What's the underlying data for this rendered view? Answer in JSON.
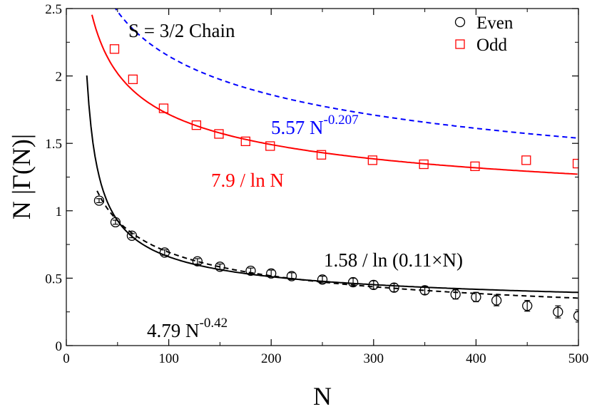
{
  "chart_data": {
    "type": "scatter",
    "title": "S = 3/2 Chain",
    "xlabel": "N",
    "ylabel": "N |Γ(N)|",
    "xlim": [
      0,
      500
    ],
    "ylim": [
      0,
      2.5
    ],
    "x_ticks": [
      0,
      100,
      200,
      300,
      400,
      500
    ],
    "y_ticks": [
      0,
      0.5,
      1,
      1.5,
      2,
      2.5
    ],
    "x_tick_labels": [
      "0",
      "100",
      "200",
      "300",
      "400",
      "500"
    ],
    "y_tick_labels": [
      "0",
      "0.5",
      "1",
      "1.5",
      "2",
      "2.5"
    ],
    "legend_position": "top-right",
    "series": [
      {
        "name": "Even",
        "marker": "circle",
        "color": "#000000",
        "x": [
          32,
          48,
          64,
          96,
          128,
          150,
          180,
          200,
          220,
          250,
          280,
          300,
          320,
          350,
          380,
          400,
          420,
          450,
          480,
          500
        ],
        "y": [
          1.075,
          0.915,
          0.815,
          0.69,
          0.625,
          0.585,
          0.555,
          0.535,
          0.515,
          0.49,
          0.47,
          0.45,
          0.43,
          0.41,
          0.38,
          0.36,
          0.335,
          0.295,
          0.25,
          0.22
        ],
        "err": [
          0.015,
          0.015,
          0.015,
          0.02,
          0.02,
          0.02,
          0.02,
          0.025,
          0.025,
          0.025,
          0.03,
          0.03,
          0.03,
          0.03,
          0.035,
          0.035,
          0.04,
          0.04,
          0.045,
          0.045
        ]
      },
      {
        "name": "Odd",
        "marker": "square",
        "color": "#ff0000",
        "x": [
          47,
          65,
          95,
          127,
          149,
          175,
          199,
          249,
          299,
          349,
          399,
          449,
          499
        ],
        "y": [
          2.2,
          1.975,
          1.76,
          1.635,
          1.57,
          1.515,
          1.48,
          1.415,
          1.375,
          1.345,
          1.33,
          1.375,
          1.35
        ]
      }
    ],
    "fits": [
      {
        "label": "5.57 N^-0.207",
        "base": "5.57 N",
        "exponent": "-0.207",
        "color": "#0000ff",
        "dash": true,
        "fn": "power",
        "a": 5.57,
        "b": -0.207,
        "x_range": [
          25,
          500
        ]
      },
      {
        "label": "7.9 / ln N",
        "color": "#ff0000",
        "dash": false,
        "fn": "log",
        "a": 7.9,
        "c": 1,
        "x_range": [
          25,
          500
        ]
      },
      {
        "label": "1.58 / ln (0.11×N)",
        "color": "#000000",
        "dash": false,
        "fn": "log",
        "a": 1.58,
        "c": 0.11,
        "x_range": [
          20,
          500
        ]
      },
      {
        "label": "4.79 N^-0.42",
        "base": "4.79 N",
        "exponent": "-0.42",
        "color": "#000000",
        "dash": true,
        "fn": "power",
        "a": 4.79,
        "b": -0.42,
        "x_range": [
          30,
          500
        ]
      }
    ]
  }
}
